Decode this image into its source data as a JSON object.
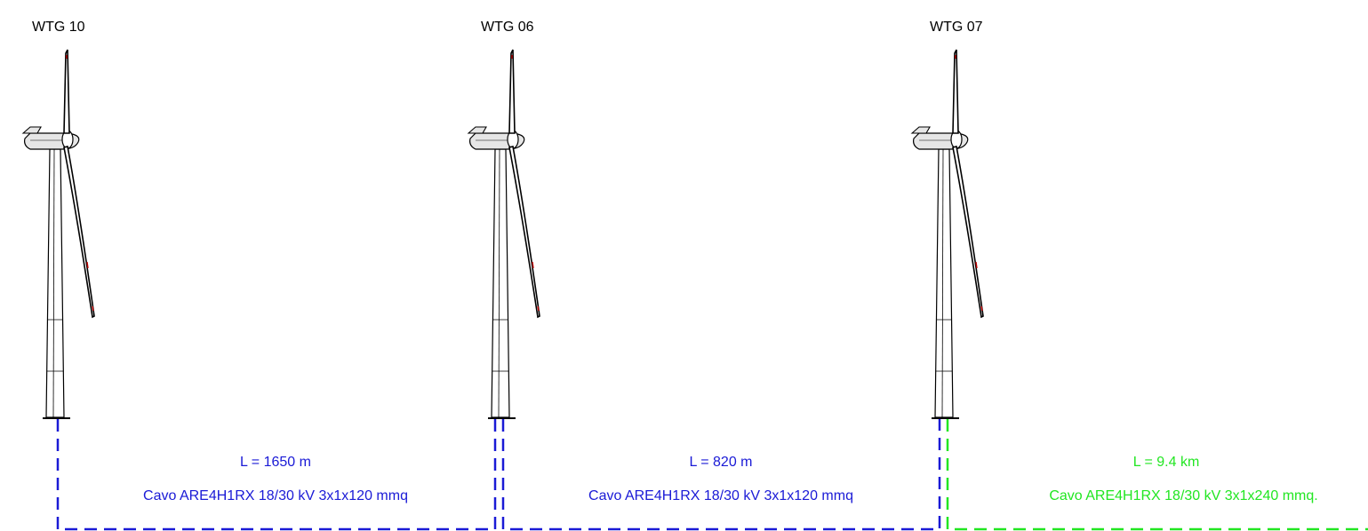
{
  "turbines": [
    {
      "id": "wtg10",
      "label": "WTG 10"
    },
    {
      "id": "wtg06",
      "label": "WTG 06"
    },
    {
      "id": "wtg07",
      "label": "WTG 07"
    }
  ],
  "cables": [
    {
      "id": "c1",
      "length": "L = 1650 m",
      "spec": "Cavo ARE4H1RX 18/30 kV 3x1x120 mmq",
      "color": "#1a1ad6"
    },
    {
      "id": "c2",
      "length": "L = 820 m",
      "spec": "Cavo ARE4H1RX 18/30 kV 3x1x120 mmq",
      "color": "#1a1ad6"
    },
    {
      "id": "c3",
      "length": "L = 9.4 km",
      "spec": "Cavo ARE4H1RX 18/30 kV 3x1x240 mmq.",
      "color": "#22e622"
    }
  ],
  "colors": {
    "tower_stroke": "#000000",
    "tower_fill": "#ffffff",
    "nacelle_fill": "#e6e6e6",
    "blade_accent": "#c00000"
  }
}
